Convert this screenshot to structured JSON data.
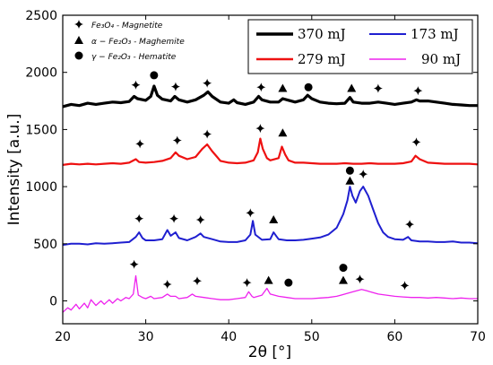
{
  "chart_data": {
    "type": "line",
    "xlabel": "2θ [°]",
    "ylabel": "Intensity [a.u.]",
    "xlim": [
      20,
      70
    ],
    "ylim": [
      -200,
      2500
    ],
    "xticks": [
      20,
      30,
      40,
      50,
      60,
      70
    ],
    "yticks": [
      0,
      500,
      1000,
      1500,
      2000,
      2500
    ],
    "grid": false,
    "legend": {
      "placement": "top-right",
      "entries": [
        {
          "label": "370 mJ",
          "color": "#000000"
        },
        {
          "label": "173 mJ",
          "color": "#1f1fd0"
        },
        {
          "label": "279 mJ",
          "color": "#ee1111"
        },
        {
          "label": "90 mJ",
          "color": "#ee22ee"
        }
      ]
    },
    "marker_legend": [
      {
        "symbol": "cross",
        "label": "Fe₃O₄ - Magnetite"
      },
      {
        "symbol": "triangle",
        "label": "α − Fe₂O₃ - Maghemite"
      },
      {
        "symbol": "circle",
        "label": "γ − Fe₂O₃ - Hematite"
      }
    ],
    "series": [
      {
        "name": "370 mJ",
        "color": "#000000",
        "width": 3.2,
        "points": [
          [
            20,
            1700
          ],
          [
            21,
            1720
          ],
          [
            22,
            1710
          ],
          [
            23,
            1730
          ],
          [
            24,
            1720
          ],
          [
            25,
            1730
          ],
          [
            26,
            1740
          ],
          [
            27,
            1735
          ],
          [
            28,
            1745
          ],
          [
            28.6,
            1790
          ],
          [
            29,
            1770
          ],
          [
            30,
            1755
          ],
          [
            30.6,
            1790
          ],
          [
            31,
            1880
          ],
          [
            31.4,
            1800
          ],
          [
            32,
            1765
          ],
          [
            33,
            1750
          ],
          [
            33.5,
            1790
          ],
          [
            34,
            1760
          ],
          [
            35,
            1740
          ],
          [
            36,
            1760
          ],
          [
            37,
            1800
          ],
          [
            37.5,
            1830
          ],
          [
            38,
            1790
          ],
          [
            39,
            1740
          ],
          [
            40,
            1730
          ],
          [
            40.6,
            1760
          ],
          [
            41,
            1735
          ],
          [
            42,
            1720
          ],
          [
            43,
            1740
          ],
          [
            43.6,
            1790
          ],
          [
            44,
            1760
          ],
          [
            45,
            1740
          ],
          [
            46,
            1740
          ],
          [
            46.5,
            1770
          ],
          [
            47,
            1760
          ],
          [
            48,
            1740
          ],
          [
            49,
            1760
          ],
          [
            49.5,
            1800
          ],
          [
            50,
            1770
          ],
          [
            51,
            1740
          ],
          [
            52,
            1730
          ],
          [
            53,
            1725
          ],
          [
            54,
            1730
          ],
          [
            54.6,
            1780
          ],
          [
            55,
            1740
          ],
          [
            56,
            1730
          ],
          [
            57,
            1730
          ],
          [
            58,
            1740
          ],
          [
            59,
            1730
          ],
          [
            60,
            1720
          ],
          [
            61,
            1730
          ],
          [
            62,
            1740
          ],
          [
            62.6,
            1760
          ],
          [
            63,
            1750
          ],
          [
            64,
            1750
          ],
          [
            65,
            1740
          ],
          [
            66,
            1730
          ],
          [
            67,
            1720
          ],
          [
            68,
            1715
          ],
          [
            69,
            1710
          ],
          [
            70,
            1710
          ]
        ]
      },
      {
        "name": "279 mJ",
        "color": "#ee1111",
        "width": 2.2,
        "points": [
          [
            20,
            1190
          ],
          [
            21,
            1200
          ],
          [
            22,
            1195
          ],
          [
            23,
            1200
          ],
          [
            24,
            1195
          ],
          [
            25,
            1200
          ],
          [
            26,
            1205
          ],
          [
            27,
            1200
          ],
          [
            28,
            1210
          ],
          [
            28.8,
            1240
          ],
          [
            29.2,
            1215
          ],
          [
            30,
            1210
          ],
          [
            31,
            1215
          ],
          [
            32,
            1225
          ],
          [
            33,
            1250
          ],
          [
            33.6,
            1300
          ],
          [
            34,
            1270
          ],
          [
            35,
            1240
          ],
          [
            36,
            1260
          ],
          [
            36.8,
            1330
          ],
          [
            37.4,
            1370
          ],
          [
            38,
            1310
          ],
          [
            38.6,
            1260
          ],
          [
            39,
            1225
          ],
          [
            40,
            1210
          ],
          [
            41,
            1205
          ],
          [
            42,
            1210
          ],
          [
            43,
            1230
          ],
          [
            43.5,
            1300
          ],
          [
            43.8,
            1420
          ],
          [
            44.1,
            1330
          ],
          [
            44.6,
            1250
          ],
          [
            45,
            1230
          ],
          [
            46,
            1250
          ],
          [
            46.4,
            1350
          ],
          [
            46.8,
            1280
          ],
          [
            47.2,
            1230
          ],
          [
            48,
            1210
          ],
          [
            49,
            1210
          ],
          [
            50,
            1205
          ],
          [
            51,
            1200
          ],
          [
            52,
            1200
          ],
          [
            53,
            1200
          ],
          [
            54,
            1205
          ],
          [
            55,
            1200
          ],
          [
            56,
            1200
          ],
          [
            57,
            1205
          ],
          [
            58,
            1200
          ],
          [
            59,
            1200
          ],
          [
            60,
            1200
          ],
          [
            61,
            1205
          ],
          [
            62,
            1220
          ],
          [
            62.5,
            1270
          ],
          [
            63,
            1240
          ],
          [
            64,
            1210
          ],
          [
            65,
            1205
          ],
          [
            66,
            1200
          ],
          [
            67,
            1200
          ],
          [
            68,
            1200
          ],
          [
            69,
            1200
          ],
          [
            70,
            1195
          ]
        ]
      },
      {
        "name": "173 mJ",
        "color": "#1f1fd0",
        "width": 2.0,
        "points": [
          [
            20,
            490
          ],
          [
            21,
            500
          ],
          [
            22,
            500
          ],
          [
            23,
            495
          ],
          [
            24,
            505
          ],
          [
            25,
            500
          ],
          [
            26,
            505
          ],
          [
            27,
            510
          ],
          [
            28,
            515
          ],
          [
            28.8,
            560
          ],
          [
            29.2,
            600
          ],
          [
            29.6,
            550
          ],
          [
            30,
            530
          ],
          [
            31,
            530
          ],
          [
            32,
            540
          ],
          [
            32.6,
            620
          ],
          [
            33,
            570
          ],
          [
            33.6,
            600
          ],
          [
            34,
            550
          ],
          [
            35,
            530
          ],
          [
            36,
            560
          ],
          [
            36.6,
            590
          ],
          [
            37,
            560
          ],
          [
            38,
            540
          ],
          [
            39,
            520
          ],
          [
            40,
            515
          ],
          [
            41,
            515
          ],
          [
            42,
            530
          ],
          [
            42.6,
            580
          ],
          [
            42.9,
            700
          ],
          [
            43.2,
            580
          ],
          [
            44,
            535
          ],
          [
            45,
            540
          ],
          [
            45.4,
            600
          ],
          [
            45.8,
            560
          ],
          [
            46,
            540
          ],
          [
            47,
            530
          ],
          [
            48,
            530
          ],
          [
            49,
            535
          ],
          [
            50,
            545
          ],
          [
            51,
            555
          ],
          [
            52,
            580
          ],
          [
            53,
            640
          ],
          [
            53.8,
            760
          ],
          [
            54.3,
            880
          ],
          [
            54.6,
            1000
          ],
          [
            54.9,
            920
          ],
          [
            55.3,
            860
          ],
          [
            55.8,
            960
          ],
          [
            56.2,
            1000
          ],
          [
            56.8,
            920
          ],
          [
            57.4,
            800
          ],
          [
            58,
            680
          ],
          [
            58.6,
            600
          ],
          [
            59.2,
            560
          ],
          [
            60,
            540
          ],
          [
            61,
            535
          ],
          [
            61.6,
            560
          ],
          [
            62,
            530
          ],
          [
            63,
            520
          ],
          [
            64,
            520
          ],
          [
            65,
            515
          ],
          [
            66,
            515
          ],
          [
            67,
            520
          ],
          [
            68,
            510
          ],
          [
            69,
            510
          ],
          [
            70,
            505
          ]
        ]
      },
      {
        "name": "90 mJ",
        "color": "#ee22ee",
        "width": 1.3,
        "points": [
          [
            20,
            -100
          ],
          [
            20.6,
            -60
          ],
          [
            21,
            -80
          ],
          [
            21.6,
            -30
          ],
          [
            22,
            -70
          ],
          [
            22.6,
            -20
          ],
          [
            23,
            -60
          ],
          [
            23.4,
            10
          ],
          [
            24,
            -40
          ],
          [
            24.6,
            0
          ],
          [
            25,
            -30
          ],
          [
            25.6,
            10
          ],
          [
            26,
            -20
          ],
          [
            26.6,
            20
          ],
          [
            27,
            0
          ],
          [
            27.6,
            30
          ],
          [
            28,
            20
          ],
          [
            28.5,
            60
          ],
          [
            28.8,
            220
          ],
          [
            29.1,
            50
          ],
          [
            29.6,
            30
          ],
          [
            30,
            20
          ],
          [
            30.6,
            40
          ],
          [
            31,
            20
          ],
          [
            32,
            30
          ],
          [
            32.6,
            60
          ],
          [
            33,
            40
          ],
          [
            33.6,
            40
          ],
          [
            34,
            20
          ],
          [
            35,
            30
          ],
          [
            35.6,
            60
          ],
          [
            36,
            40
          ],
          [
            37,
            30
          ],
          [
            38,
            20
          ],
          [
            39,
            10
          ],
          [
            40,
            10
          ],
          [
            41,
            20
          ],
          [
            42,
            30
          ],
          [
            42.4,
            80
          ],
          [
            42.8,
            40
          ],
          [
            43,
            30
          ],
          [
            44,
            50
          ],
          [
            44.6,
            110
          ],
          [
            45,
            60
          ],
          [
            46,
            40
          ],
          [
            47,
            30
          ],
          [
            48,
            20
          ],
          [
            49,
            20
          ],
          [
            50,
            20
          ],
          [
            51,
            25
          ],
          [
            52,
            30
          ],
          [
            53,
            40
          ],
          [
            54,
            60
          ],
          [
            55,
            80
          ],
          [
            56,
            100
          ],
          [
            56.6,
            90
          ],
          [
            57,
            80
          ],
          [
            58,
            60
          ],
          [
            59,
            50
          ],
          [
            60,
            40
          ],
          [
            61,
            35
          ],
          [
            62,
            30
          ],
          [
            63,
            30
          ],
          [
            64,
            25
          ],
          [
            65,
            30
          ],
          [
            66,
            25
          ],
          [
            67,
            20
          ],
          [
            68,
            25
          ],
          [
            69,
            20
          ],
          [
            70,
            20
          ]
        ]
      }
    ],
    "phase_markers": [
      {
        "type": "cross",
        "x": 28.8,
        "y": 1890
      },
      {
        "type": "circle",
        "x": 31.0,
        "y": 1975
      },
      {
        "type": "cross",
        "x": 33.6,
        "y": 1875
      },
      {
        "type": "cross",
        "x": 37.4,
        "y": 1905
      },
      {
        "type": "cross",
        "x": 43.9,
        "y": 1870
      },
      {
        "type": "triangle",
        "x": 46.5,
        "y": 1860
      },
      {
        "type": "circle",
        "x": 49.6,
        "y": 1870
      },
      {
        "type": "triangle",
        "x": 54.8,
        "y": 1860
      },
      {
        "type": "cross",
        "x": 58.0,
        "y": 1860
      },
      {
        "type": "cross",
        "x": 62.8,
        "y": 1840
      },
      {
        "type": "cross",
        "x": 29.3,
        "y": 1375
      },
      {
        "type": "cross",
        "x": 33.8,
        "y": 1405
      },
      {
        "type": "cross",
        "x": 37.4,
        "y": 1460
      },
      {
        "type": "cross",
        "x": 43.8,
        "y": 1510
      },
      {
        "type": "triangle",
        "x": 46.5,
        "y": 1470
      },
      {
        "type": "cross",
        "x": 62.6,
        "y": 1390
      },
      {
        "type": "cross",
        "x": 29.2,
        "y": 720
      },
      {
        "type": "cross",
        "x": 33.4,
        "y": 720
      },
      {
        "type": "cross",
        "x": 36.6,
        "y": 710
      },
      {
        "type": "cross",
        "x": 42.6,
        "y": 770
      },
      {
        "type": "triangle",
        "x": 45.4,
        "y": 710
      },
      {
        "type": "circle",
        "x": 54.6,
        "y": 1140
      },
      {
        "type": "triangle",
        "x": 54.6,
        "y": 1050
      },
      {
        "type": "cross",
        "x": 56.2,
        "y": 1110
      },
      {
        "type": "cross",
        "x": 61.8,
        "y": 670
      },
      {
        "type": "cross",
        "x": 28.6,
        "y": 320
      },
      {
        "type": "cross",
        "x": 32.6,
        "y": 145
      },
      {
        "type": "cross",
        "x": 36.2,
        "y": 175
      },
      {
        "type": "cross",
        "x": 42.2,
        "y": 160
      },
      {
        "type": "triangle",
        "x": 44.8,
        "y": 180
      },
      {
        "type": "circle",
        "x": 47.2,
        "y": 160
      },
      {
        "type": "circle",
        "x": 53.8,
        "y": 290
      },
      {
        "type": "triangle",
        "x": 53.8,
        "y": 180
      },
      {
        "type": "cross",
        "x": 55.8,
        "y": 190
      },
      {
        "type": "cross",
        "x": 61.2,
        "y": 135
      }
    ]
  }
}
